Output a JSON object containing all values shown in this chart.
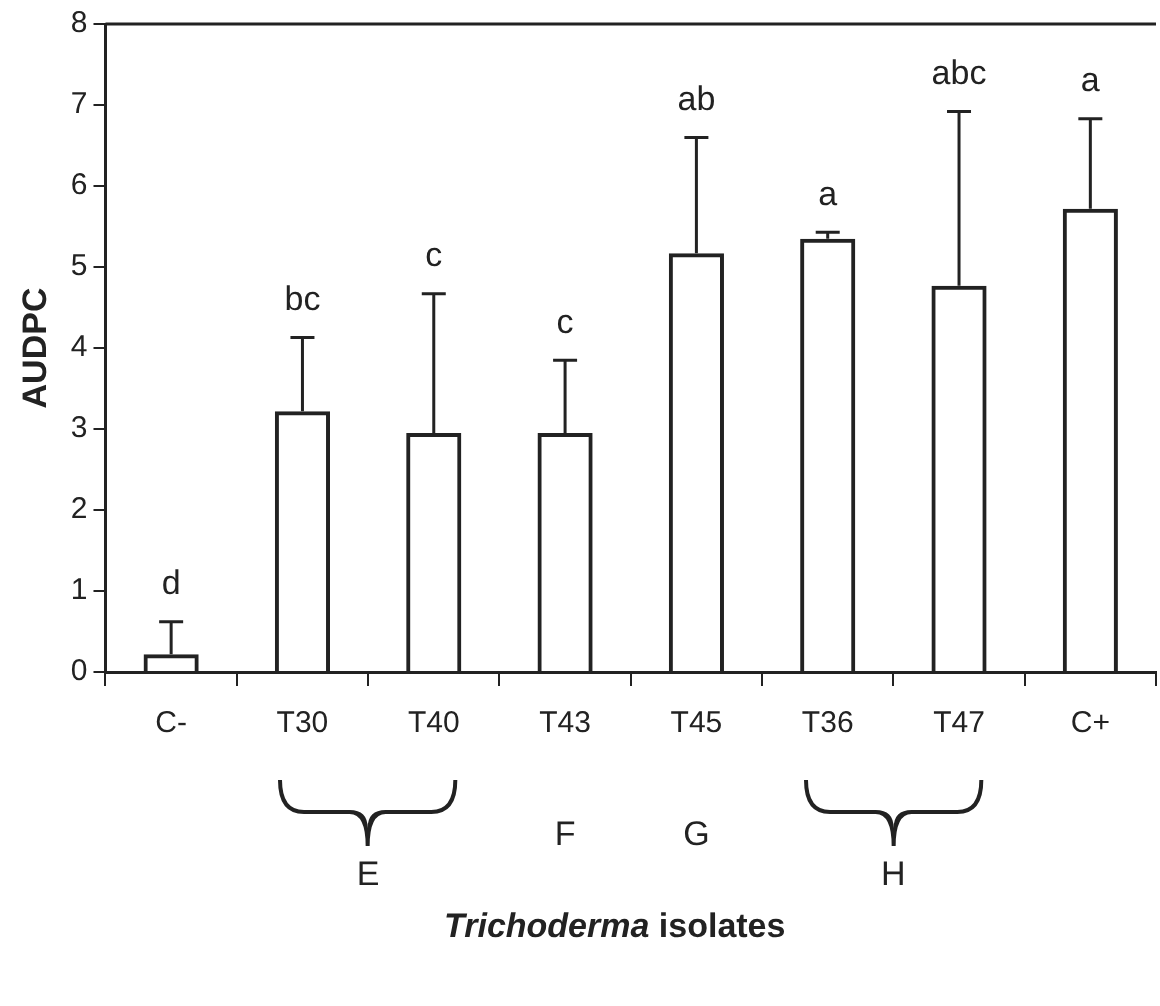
{
  "chart_data": {
    "type": "bar",
    "xlabel": "Trichoderma isolates",
    "ylabel": "AUDPC",
    "categories": [
      "C-",
      "T30",
      "T40",
      "T43",
      "T45",
      "T36",
      "T47",
      "C+"
    ],
    "values": [
      0.22,
      3.22,
      2.95,
      2.95,
      5.17,
      5.35,
      4.77,
      5.72
    ],
    "errors": [
      [
        0.22,
        0.62
      ],
      [
        3.22,
        4.13
      ],
      [
        2.95,
        4.67
      ],
      [
        2.95,
        3.85
      ],
      [
        5.17,
        6.6
      ],
      [
        5.35,
        5.43
      ],
      [
        4.77,
        6.92
      ],
      [
        5.72,
        6.83
      ]
    ],
    "color": "#222222",
    "ylim": [
      0,
      8
    ],
    "yticks": [
      0,
      1,
      2,
      3,
      4,
      5,
      6,
      7,
      8
    ],
    "grid": false,
    "legend": false,
    "annotations": [
      {
        "text": "d",
        "x": "C-",
        "y": 0.62
      },
      {
        "text": "bc",
        "x": "T30",
        "y": 4.13
      },
      {
        "text": "c",
        "x": "T40",
        "y": 4.67
      },
      {
        "text": "c",
        "x": "T43",
        "y": 3.85
      },
      {
        "text": "ab",
        "x": "T45",
        "y": 6.6
      },
      {
        "text": "a",
        "x": "T36",
        "y": 5.43
      },
      {
        "text": "abc",
        "x": "T47",
        "y": 6.92
      },
      {
        "text": "a",
        "x": "C+",
        "y": 6.83
      },
      "E",
      "F",
      "G",
      "H"
    ]
  }
}
